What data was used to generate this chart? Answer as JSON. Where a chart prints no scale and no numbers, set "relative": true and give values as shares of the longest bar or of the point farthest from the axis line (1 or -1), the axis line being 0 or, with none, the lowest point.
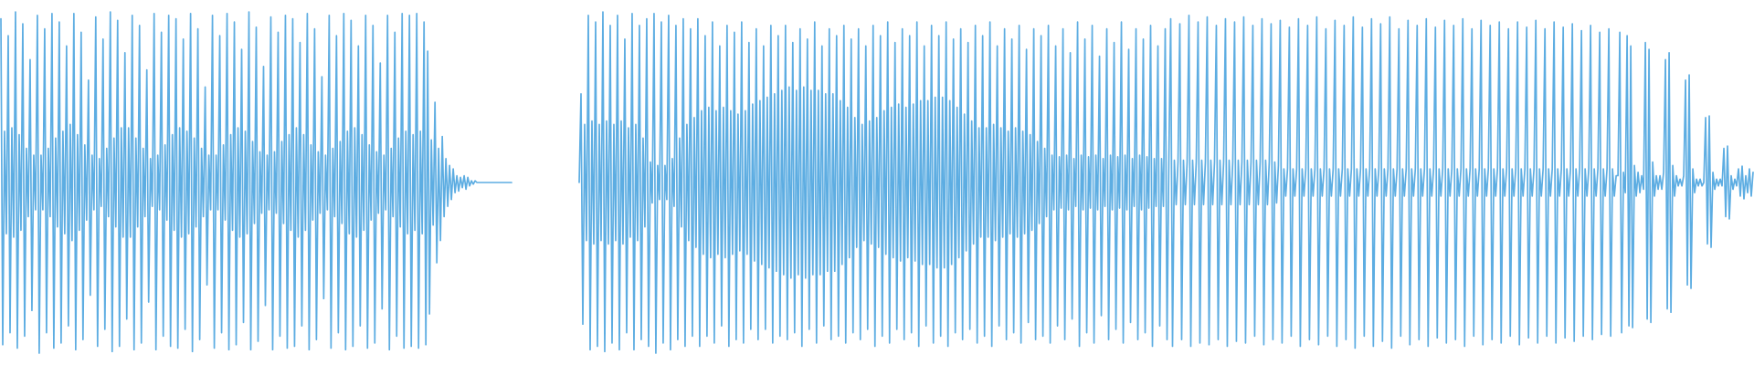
{
  "chart_data": [
    {
      "type": "line",
      "relative": true,
      "color": "#5dade2",
      "categories": [
        null,
        null,
        null,
        null,
        null,
        null,
        null,
        null,
        null,
        null,
        null,
        null,
        null,
        null,
        null,
        null,
        null,
        null,
        null,
        null,
        null,
        null,
        null,
        null,
        null,
        null,
        null,
        null,
        null,
        null,
        null,
        null,
        null,
        null,
        null,
        null,
        null,
        null,
        null,
        null,
        null,
        null,
        null,
        null,
        null,
        null,
        null,
        null,
        null,
        null,
        null,
        null,
        null,
        null,
        null,
        null,
        null,
        null,
        null,
        null,
        null,
        null,
        null,
        null,
        null,
        null,
        null,
        null,
        null,
        null,
        null,
        null,
        null,
        null,
        null,
        null,
        null,
        null,
        null,
        null,
        null,
        null,
        null,
        null,
        null,
        null,
        null,
        null,
        null,
        null,
        null,
        null,
        null,
        null,
        null,
        null,
        null,
        null,
        null,
        null,
        null,
        null,
        null,
        null,
        null,
        null,
        null,
        null,
        null,
        null,
        null,
        null,
        null,
        null,
        null,
        null,
        null,
        null,
        null,
        null,
        null,
        null,
        null,
        null,
        null,
        null,
        null,
        null,
        null,
        null,
        null,
        null,
        null,
        null,
        null,
        null,
        null,
        null,
        null,
        null,
        null,
        null,
        null,
        null,
        null,
        null,
        null,
        null,
        null,
        null,
        null,
        null,
        null,
        null,
        null,
        null,
        null,
        null,
        null,
        null,
        null,
        null,
        null,
        null,
        null,
        null,
        null,
        null,
        null,
        null,
        null,
        null,
        null,
        null,
        null,
        null,
        null,
        null,
        null,
        null,
        null,
        null,
        null,
        null,
        null,
        null,
        null,
        null,
        null,
        null,
        null,
        null,
        null,
        null,
        null,
        null,
        null,
        null,
        null,
        null,
        null,
        null,
        null,
        null,
        null,
        null,
        null,
        null,
        null,
        null,
        null,
        null,
        null,
        null,
        null,
        null,
        null,
        null,
        null,
        null,
        null,
        null,
        null,
        null,
        null,
        null,
        null,
        null,
        null,
        null,
        null,
        null,
        null,
        null,
        null,
        null,
        null,
        null,
        null,
        null,
        null,
        null,
        null,
        null,
        null,
        null,
        null,
        null,
        null,
        null,
        null,
        null,
        null,
        null,
        null,
        null,
        null,
        null,
        null,
        null,
        null,
        null,
        null,
        null,
        null,
        null,
        null,
        null,
        null,
        null,
        null,
        null,
        null,
        null,
        null,
        null,
        null,
        null,
        null,
        null,
        null
      ],
      "values": [
        0.98,
        0.025,
        0.65,
        0.35,
        0.93,
        0.06,
        0.66,
        0.34,
        1,
        0.015,
        0.64,
        0.36,
        0.965,
        0.05,
        0.6,
        0.4,
        0.86,
        0.125,
        0.58,
        0.42,
        0.99,
        0,
        0.58,
        0.42,
        0.95,
        0.06,
        0.6,
        0.4,
        0.995,
        0.015,
        0.63,
        0.37,
        0.97,
        0.03,
        0.65,
        0.35,
        0.9,
        0.08,
        0.67,
        0.33,
        0.995,
        0.01,
        0.64,
        0.36,
        0.94,
        0.04,
        0.61,
        0.39,
        0.8,
        0.17,
        0.58,
        0.42,
        0.985,
        0.02,
        0.57,
        0.43,
        0.92,
        0.07,
        0.6,
        0.4,
        1,
        0.005,
        0.63,
        0.37,
        0.975,
        0.02,
        0.66,
        0.34,
        0.88,
        0.1,
        0.66,
        0.34,
        0.99,
        0.01,
        0.63,
        0.37,
        0.96,
        0.03,
        0.6,
        0.4,
        0.83,
        0.15,
        0.57,
        0.43,
        0.995,
        0.01,
        0.58,
        0.42,
        0.94,
        0.05,
        0.61,
        0.39,
        0.99,
        0.02,
        0.64,
        0.36,
        0.98,
        0.015,
        0.66,
        0.34,
        0.92,
        0.07,
        0.65,
        0.35,
        0.995,
        0.005,
        0.63,
        0.37,
        0.95,
        0.04,
        0.6,
        0.4,
        0.78,
        0.2,
        0.58,
        0.42,
        0.99,
        0.015,
        0.58,
        0.42,
        0.93,
        0.06,
        0.61,
        0.39,
        0.995,
        0.01,
        0.64,
        0.36,
        0.97,
        0.025,
        0.66,
        0.34,
        0.89,
        0.09,
        0.65,
        0.35,
        1,
        0.01,
        0.62,
        0.38,
        0.955,
        0.035,
        0.59,
        0.41,
        0.84,
        0.14,
        0.58,
        0.42,
        0.985,
        0.01,
        0.59,
        0.41,
        0.94,
        0.05,
        0.62,
        0.38,
        0.99,
        0.015,
        0.64,
        0.36,
        0.98,
        0.02,
        0.66,
        0.34,
        0.91,
        0.08,
        0.64,
        0.36,
        0.995,
        0.01,
        0.61,
        0.39,
        0.95,
        0.04,
        0.59,
        0.41,
        0.81,
        0.16,
        0.58,
        0.42,
        0.99,
        0.015,
        0.6,
        0.4,
        0.93,
        0.06,
        0.62,
        0.38,
        0.995,
        0.01,
        0.65,
        0.35,
        0.975,
        0.02,
        0.66,
        0.34,
        0.9,
        0.08,
        0.64,
        0.36,
        0.99,
        0.015,
        0.61,
        0.39,
        0.96,
        0.03,
        0.59,
        0.41,
        0.85,
        0.13,
        0.58,
        0.42,
        0.99,
        0.01,
        0.6,
        0.4,
        0.94,
        0.05,
        0.63,
        0.37,
        0.995,
        0.015,
        0.65,
        0.35,
        0.99,
        0.02,
        0.64,
        0.36,
        0.995,
        0.015,
        0.65,
        0.35,
        0.97,
        0.025,
        0.885,
        0.115,
        0.625,
        0.375,
        0.735,
        0.265,
        0.6,
        0.33,
        0.635,
        0.4,
        0.57,
        0.43,
        0.55,
        0.45,
        0.54,
        0.47,
        0.52,
        0.475,
        0.515,
        0.485,
        0.52,
        0.48,
        0.515,
        0.49,
        0.505,
        0.495,
        0.505,
        0.5,
        0.5,
        0.5,
        0.5,
        0.5,
        0.5,
        0.5,
        0.5,
        0.5,
        0.5,
        0.5,
        0.5,
        0.5,
        0.5,
        0.5,
        0.5,
        0.5,
        0.5,
        0.5,
        0.5
      ]
    },
    {
      "type": "line",
      "relative": true,
      "color": "#5dade2",
      "categories": [
        null,
        null,
        null,
        null,
        null,
        null,
        null,
        null,
        null,
        null,
        null,
        null,
        null,
        null,
        null,
        null,
        null,
        null,
        null,
        null,
        null,
        null,
        null,
        null,
        null,
        null,
        null,
        null,
        null,
        null,
        null,
        null,
        null,
        null,
        null,
        null,
        null,
        null,
        null,
        null,
        null,
        null,
        null,
        null,
        null,
        null,
        null,
        null,
        null,
        null,
        null,
        null,
        null,
        null,
        null,
        null,
        null,
        null,
        null,
        null,
        null,
        null,
        null,
        null,
        null,
        null,
        null,
        null,
        null,
        null,
        null,
        null,
        null,
        null,
        null,
        null,
        null,
        null,
        null,
        null,
        null,
        null,
        null,
        null,
        null,
        null,
        null,
        null,
        null,
        null,
        null,
        null,
        null,
        null,
        null,
        null,
        null,
        null,
        null,
        null,
        null,
        null,
        null,
        null,
        null,
        null,
        null,
        null,
        null,
        null,
        null,
        null,
        null,
        null,
        null,
        null,
        null,
        null,
        null,
        null,
        null,
        null,
        null,
        null,
        null,
        null,
        null,
        null,
        null,
        null,
        null,
        null,
        null,
        null,
        null,
        null,
        null,
        null,
        null,
        null,
        null,
        null,
        null,
        null,
        null,
        null,
        null,
        null,
        null,
        null,
        null,
        null,
        null,
        null,
        null,
        null,
        null,
        null,
        null,
        null,
        null,
        null,
        null,
        null,
        null,
        null,
        null,
        null,
        null,
        null,
        null,
        null,
        null,
        null,
        null,
        null,
        null,
        null,
        null,
        null,
        null,
        null,
        null,
        null,
        null,
        null,
        null,
        null,
        null,
        null,
        null,
        null,
        null,
        null,
        null,
        null,
        null,
        null,
        null,
        null,
        null,
        null,
        null,
        null,
        null,
        null,
        null,
        null,
        null,
        null,
        null,
        null,
        null,
        null,
        null,
        null,
        null,
        null,
        null,
        null,
        null,
        null,
        null,
        null,
        null,
        null,
        null,
        null,
        null,
        null,
        null,
        null,
        null,
        null,
        null,
        null,
        null,
        null,
        null,
        null,
        null,
        null,
        null,
        null,
        null,
        null,
        null,
        null,
        null,
        null,
        null,
        null,
        null,
        null,
        null,
        null,
        null,
        null,
        null,
        null,
        null,
        null,
        null,
        null,
        null,
        null,
        null,
        null,
        null,
        null,
        null,
        null,
        null,
        null,
        null,
        null,
        null,
        null,
        null,
        null,
        null,
        null,
        null,
        null,
        null,
        null,
        null,
        null,
        null,
        null,
        null,
        null,
        null,
        null,
        null,
        null,
        null,
        null,
        null,
        null,
        null,
        null,
        null,
        null,
        null,
        null,
        null,
        null,
        null,
        null,
        null,
        null,
        null,
        null,
        null,
        null,
        null,
        null,
        null,
        null,
        null,
        null,
        null,
        null,
        null,
        null,
        null,
        null,
        null,
        null,
        null,
        null,
        null,
        null,
        null,
        null,
        null,
        null,
        null,
        null,
        null,
        null,
        null,
        null,
        null,
        null,
        null,
        null,
        null,
        null,
        null,
        null,
        null,
        null,
        null,
        null,
        null,
        null,
        null,
        null,
        null,
        null,
        null,
        null,
        null,
        null,
        null,
        null,
        null,
        null,
        null,
        null,
        null,
        null,
        null,
        null,
        null,
        null,
        null,
        null,
        null,
        null,
        null,
        null,
        null,
        null,
        null,
        null,
        null,
        null,
        null,
        null,
        null,
        null,
        null,
        null,
        null,
        null,
        null,
        null,
        null,
        null,
        null,
        null,
        null,
        null,
        null,
        null,
        null,
        null,
        null,
        null,
        null,
        null,
        null,
        null,
        null,
        null,
        null,
        null,
        null,
        null,
        null,
        null,
        null,
        null,
        null,
        null,
        null,
        null,
        null,
        null,
        null,
        null,
        null,
        null,
        null,
        null,
        null,
        null,
        null,
        null,
        null,
        null,
        null,
        null,
        null,
        null,
        null,
        null,
        null,
        null,
        null,
        null,
        null,
        null,
        null,
        null,
        null,
        null,
        null,
        null,
        null,
        null,
        null,
        null,
        null,
        null,
        null,
        null,
        null,
        null,
        null,
        null,
        null,
        null,
        null,
        null,
        null,
        null,
        null,
        null,
        null,
        null,
        null,
        null,
        null,
        null,
        null,
        null,
        null,
        null,
        null,
        null,
        null,
        null,
        null,
        null,
        null,
        null,
        null,
        null,
        null,
        null,
        null,
        null,
        null,
        null,
        null,
        null,
        null,
        null,
        null,
        null,
        null,
        null,
        null,
        null,
        null,
        null,
        null,
        null,
        null,
        null,
        null,
        null,
        null,
        null,
        null,
        null,
        null,
        null,
        null,
        null,
        null,
        null,
        null,
        null,
        null,
        null,
        null,
        null,
        null,
        null,
        null,
        null,
        null,
        null,
        null,
        null,
        null,
        null,
        null,
        null,
        null,
        null,
        null,
        null,
        null,
        null,
        null,
        null,
        null,
        null,
        null,
        null,
        null,
        null,
        null,
        null,
        null,
        null,
        null,
        null,
        null,
        null,
        null,
        null,
        null,
        null,
        null,
        null,
        null,
        null,
        null,
        null,
        null,
        null,
        null,
        null,
        null,
        null,
        null,
        null,
        null,
        null,
        null,
        null,
        null,
        null,
        null,
        null,
        null,
        null,
        null,
        null,
        null,
        null,
        null,
        null,
        null,
        null,
        null,
        null,
        null,
        null,
        null,
        null,
        null,
        null,
        null,
        null,
        null,
        null,
        null,
        null,
        null,
        null,
        null,
        null,
        null,
        null,
        null,
        null,
        null,
        null,
        null,
        null,
        null,
        null,
        null,
        null,
        null,
        null
      ],
      "values": [
        0.5,
        0.76,
        0.085,
        0.67,
        0.33,
        0.99,
        0.01,
        0.68,
        0.32,
        0.97,
        0.02,
        0.67,
        0.33,
        1,
        0.005,
        0.68,
        0.32,
        0.96,
        0.03,
        0.67,
        0.33,
        0.99,
        0.01,
        0.68,
        0.32,
        0.92,
        0.06,
        0.66,
        0.34,
        0.995,
        0.01,
        0.67,
        0.33,
        0.96,
        0.04,
        0.63,
        0.37,
        0.98,
        0.02,
        0.56,
        0.44,
        0.995,
        0,
        0.55,
        0.45,
        0.97,
        0.03,
        0.55,
        0.45,
        0.99,
        0.01,
        0.57,
        0.43,
        0.96,
        0.04,
        0.63,
        0.37,
        0.98,
        0.02,
        0.67,
        0.33,
        0.95,
        0.05,
        0.69,
        0.31,
        0.98,
        0.02,
        0.71,
        0.29,
        0.93,
        0.05,
        0.72,
        0.28,
        0.97,
        0.03,
        0.71,
        0.29,
        0.9,
        0.08,
        0.72,
        0.28,
        0.96,
        0.02,
        0.71,
        0.29,
        0.94,
        0.04,
        0.7,
        0.3,
        0.97,
        0.03,
        0.71,
        0.29,
        0.91,
        0.07,
        0.73,
        0.27,
        0.95,
        0.04,
        0.74,
        0.26,
        0.9,
        0.07,
        0.75,
        0.25,
        0.96,
        0.03,
        0.76,
        0.24,
        0.93,
        0.05,
        0.77,
        0.23,
        0.96,
        0.04,
        0.78,
        0.22,
        0.91,
        0.06,
        0.77,
        0.23,
        0.95,
        0.02,
        0.78,
        0.22,
        0.92,
        0.07,
        0.77,
        0.23,
        0.97,
        0.03,
        0.77,
        0.23,
        0.9,
        0.08,
        0.76,
        0.24,
        0.95,
        0.04,
        0.76,
        0.24,
        0.93,
        0.05,
        0.74,
        0.26,
        0.96,
        0.03,
        0.72,
        0.28,
        0.92,
        0.06,
        0.69,
        0.31,
        0.95,
        0.04,
        0.67,
        0.33,
        0.9,
        0.07,
        0.68,
        0.32,
        0.96,
        0.02,
        0.69,
        0.31,
        0.93,
        0.05,
        0.71,
        0.29,
        0.97,
        0.03,
        0.72,
        0.28,
        0.91,
        0.07,
        0.73,
        0.27,
        0.95,
        0.04,
        0.72,
        0.28,
        0.93,
        0.06,
        0.73,
        0.27,
        0.97,
        0.02,
        0.74,
        0.26,
        0.9,
        0.08,
        0.74,
        0.26,
        0.96,
        0.03,
        0.75,
        0.25,
        0.93,
        0.05,
        0.75,
        0.25,
        0.97,
        0.02,
        0.74,
        0.26,
        0.92,
        0.06,
        0.72,
        0.28,
        0.95,
        0.04,
        0.7,
        0.3,
        0.91,
        0.07,
        0.68,
        0.32,
        0.96,
        0.03,
        0.66,
        0.34,
        0.93,
        0.05,
        0.66,
        0.34,
        0.97,
        0.02,
        0.67,
        0.33,
        0.9,
        0.08,
        0.66,
        0.34,
        0.95,
        0.04,
        0.65,
        0.35,
        0.92,
        0.06,
        0.66,
        0.34,
        0.96,
        0.03,
        0.65,
        0.35,
        0.89,
        0.09,
        0.64,
        0.36,
        0.95,
        0.04,
        0.62,
        0.38,
        0.93,
        0.05,
        0.6,
        0.4,
        0.96,
        0.03,
        0.58,
        0.42,
        0.9,
        0.08,
        0.575,
        0.425,
        0.95,
        0.04,
        0.58,
        0.42,
        0.88,
        0.1,
        0.57,
        0.43,
        0.97,
        0.02,
        0.58,
        0.42,
        0.92,
        0.06,
        0.575,
        0.425,
        0.96,
        0.03,
        0.58,
        0.42,
        0.87,
        0.11,
        0.57,
        0.43,
        0.95,
        0.04,
        0.58,
        0.42,
        0.91,
        0.07,
        0.575,
        0.425,
        0.97,
        0.03,
        0.58,
        0.42,
        0.89,
        0.09,
        0.57,
        0.43,
        0.95,
        0.04,
        0.58,
        0.42,
        0.92,
        0.06,
        0.575,
        0.425,
        0.96,
        0.02,
        0.57,
        0.43,
        0.9,
        0.08,
        0.57,
        0.43,
        0.95,
        0.04,
        0.57,
        0.98,
        0.02,
        0.565,
        0.435,
        0.56,
        0.965,
        0.04,
        0.565,
        0.435,
        0.56,
        0.99,
        0.02,
        0.565,
        0.435,
        0.56,
        0.97,
        0.03,
        0.565,
        0.435,
        0.56,
        0.985,
        0.025,
        0.565,
        0.435,
        0.56,
        0.96,
        0.04,
        0.565,
        0.435,
        0.56,
        0.98,
        0.02,
        0.565,
        0.435,
        0.56,
        0.97,
        0.035,
        0.565,
        0.435,
        0.56,
        0.985,
        0.03,
        0.565,
        0.435,
        0.56,
        0.96,
        0.05,
        0.565,
        0.435,
        0.56,
        0.98,
        0.025,
        0.565,
        0.435,
        0.56,
        0.965,
        0.04,
        0.56,
        0.44,
        0.55,
        0.975,
        0.03,
        0.54,
        0.46,
        0.54,
        0.955,
        0.05,
        0.54,
        0.46,
        0.54,
        0.98,
        0.02,
        0.54,
        0.46,
        0.54,
        0.96,
        0.04,
        0.54,
        0.46,
        0.54,
        0.985,
        0.025,
        0.54,
        0.46,
        0.54,
        0.95,
        0.05,
        0.54,
        0.46,
        0.54,
        0.975,
        0.02,
        0.54,
        0.46,
        0.54,
        0.96,
        0.04,
        0.54,
        0.46,
        0.54,
        0.985,
        0.015,
        0.54,
        0.46,
        0.54,
        0.955,
        0.05,
        0.54,
        0.46,
        0.54,
        0.98,
        0.02,
        0.54,
        0.46,
        0.54,
        0.965,
        0.035,
        0.54,
        0.46,
        0.54,
        0.985,
        0.015,
        0.54,
        0.46,
        0.54,
        0.95,
        0.05,
        0.54,
        0.46,
        0.54,
        0.975,
        0.025,
        0.54,
        0.46,
        0.54,
        0.96,
        0.04,
        0.54,
        0.46,
        0.54,
        0.98,
        0.02,
        0.54,
        0.46,
        0.54,
        0.955,
        0.045,
        0.54,
        0.46,
        0.54,
        0.975,
        0.03,
        0.54,
        0.46,
        0.54,
        0.96,
        0.04,
        0.54,
        0.46,
        0.54,
        0.98,
        0.02,
        0.54,
        0.46,
        0.54,
        0.95,
        0.05,
        0.54,
        0.46,
        0.54,
        0.975,
        0.025,
        0.54,
        0.46,
        0.54,
        0.96,
        0.04,
        0.54,
        0.46,
        0.54,
        0.97,
        0.03,
        0.54,
        0.46,
        0.54,
        0.95,
        0.05,
        0.54,
        0.46,
        0.54,
        0.97,
        0.025,
        0.54,
        0.46,
        0.54,
        0.955,
        0.045,
        0.54,
        0.46,
        0.54,
        0.975,
        0.03,
        0.54,
        0.46,
        0.54,
        0.95,
        0.05,
        0.54,
        0.46,
        0.54,
        0.97,
        0.03,
        0.54,
        0.46,
        0.54,
        0.955,
        0.045,
        0.54,
        0.46,
        0.54,
        0.965,
        0.035,
        0.54,
        0.46,
        0.54,
        0.945,
        0.05,
        0.54,
        0.46,
        0.54,
        0.96,
        0.04,
        0.54,
        0.46,
        0.54,
        0.94,
        0.055,
        0.54,
        0.46,
        0.54,
        0.95,
        0.05,
        0.54,
        0.46,
        0.52,
        0.52,
        0.94,
        0.06,
        0.53,
        0.47,
        0.93,
        0.08,
        0.9,
        0.075,
        0.55,
        0.46,
        0.53,
        0.47,
        0.52,
        0.48,
        0.91,
        0.1,
        0.89,
        0.09,
        0.56,
        0.46,
        0.52,
        0.48,
        0.52,
        0.48,
        0.53,
        0.86,
        0.13,
        0.88,
        0.12,
        0.55,
        0.46,
        0.52,
        0.49,
        0.51,
        0.49,
        0.52,
        0.8,
        0.2,
        0.815,
        0.19,
        0.54,
        0.47,
        0.51,
        0.49,
        0.51,
        0.49,
        0.5,
        0.69,
        0.32,
        0.695,
        0.31,
        0.53,
        0.48,
        0.51,
        0.49,
        0.51,
        0.49,
        0.6,
        0.4,
        0.607,
        0.393,
        0.52,
        0.48,
        0.51,
        0.49,
        0.54,
        0.46,
        0.548,
        0.452,
        0.52,
        0.47,
        0.54,
        0.46,
        0.53
      ]
    }
  ]
}
